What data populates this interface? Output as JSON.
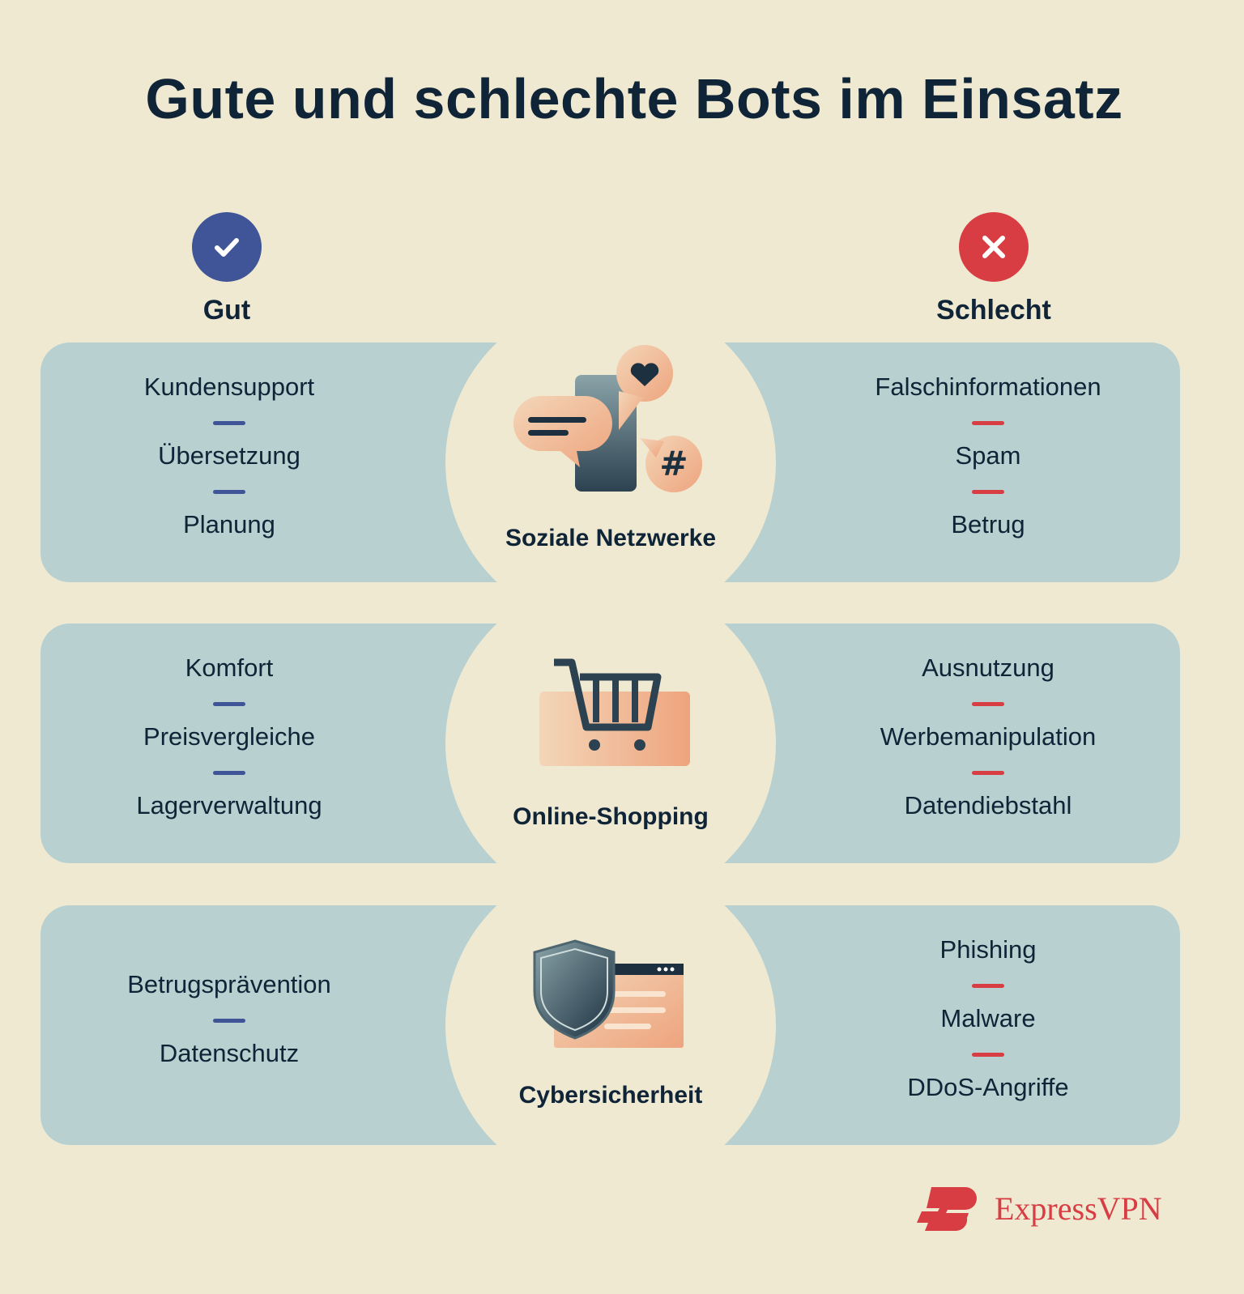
{
  "title": "Gute und schlechte Bots im Einsatz",
  "colors": {
    "background": "#efe9d2",
    "panel": "#b8d0d0",
    "text": "#0f2437",
    "good": "#3f5597",
    "bad": "#d93d44",
    "accent": "#f0b088"
  },
  "good": {
    "label": "Gut",
    "icon": "check-icon"
  },
  "bad": {
    "label": "Schlecht",
    "icon": "x-icon"
  },
  "rows": [
    {
      "category": "Soziale Netzwerke",
      "icon": "social-media-icon",
      "good": [
        "Kundensupport",
        "Übersetzung",
        "Planung"
      ],
      "bad": [
        "Falschinformationen",
        "Spam",
        "Betrug"
      ]
    },
    {
      "category": "Online-Shopping",
      "icon": "shopping-cart-icon",
      "good": [
        "Komfort",
        "Preisvergleiche",
        "Lagerverwaltung"
      ],
      "bad": [
        "Ausnutzung",
        "Werbemanipulation",
        "Datendiebstahl"
      ]
    },
    {
      "category": "Cybersicherheit",
      "icon": "shield-icon",
      "good": [
        "Betrugsprävention",
        "Datenschutz"
      ],
      "bad": [
        "Phishing",
        "Malware",
        "DDoS-Angriffe"
      ]
    }
  ],
  "brand": "ExpressVPN"
}
